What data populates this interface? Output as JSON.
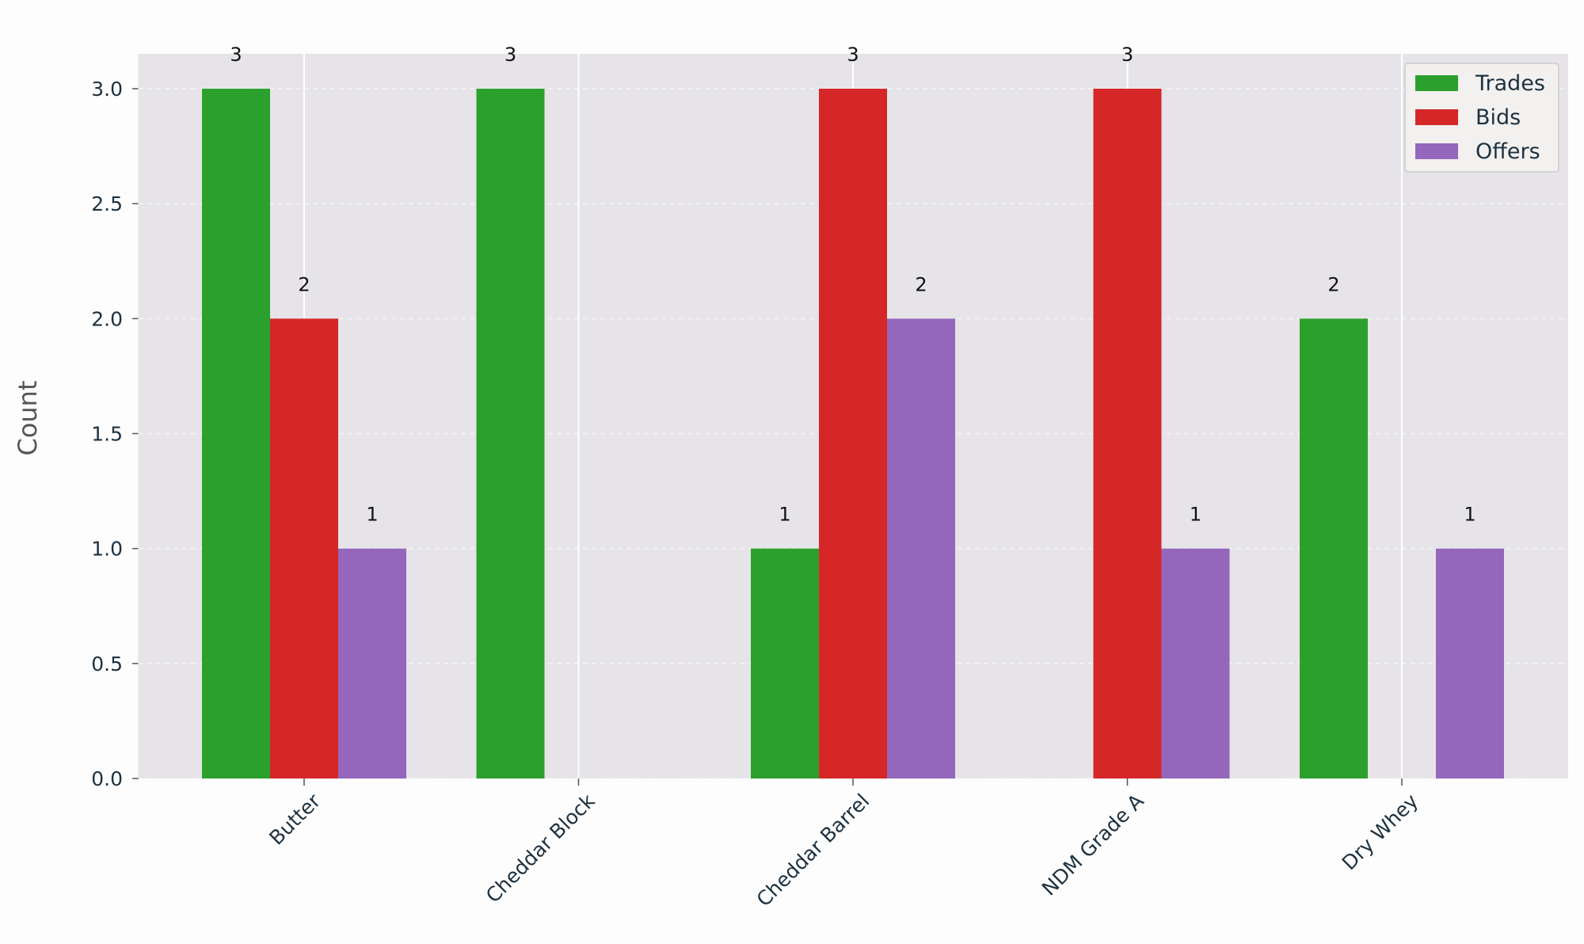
{
  "chart_data": {
    "type": "bar",
    "categories": [
      "Butter",
      "Cheddar Block",
      "Cheddar Barrel",
      "NDM Grade A",
      "Dry Whey"
    ],
    "series": [
      {
        "name": "Trades",
        "color": "#2ca02c",
        "values": [
          3,
          3,
          1,
          0,
          2
        ]
      },
      {
        "name": "Bids",
        "color": "#d62728",
        "values": [
          2,
          0,
          3,
          3,
          0
        ]
      },
      {
        "name": "Offers",
        "color": "#9467bd",
        "values": [
          1,
          0,
          2,
          1,
          1
        ]
      }
    ],
    "xlabel": "",
    "ylabel": "Count",
    "ylim": [
      0,
      3.15
    ],
    "yticks": [
      "0.0",
      "0.5",
      "1.0",
      "1.5",
      "2.0",
      "2.5",
      "3.0"
    ],
    "legend_position": "top-right",
    "grid": true,
    "plot_background": "#e6e4e8"
  }
}
